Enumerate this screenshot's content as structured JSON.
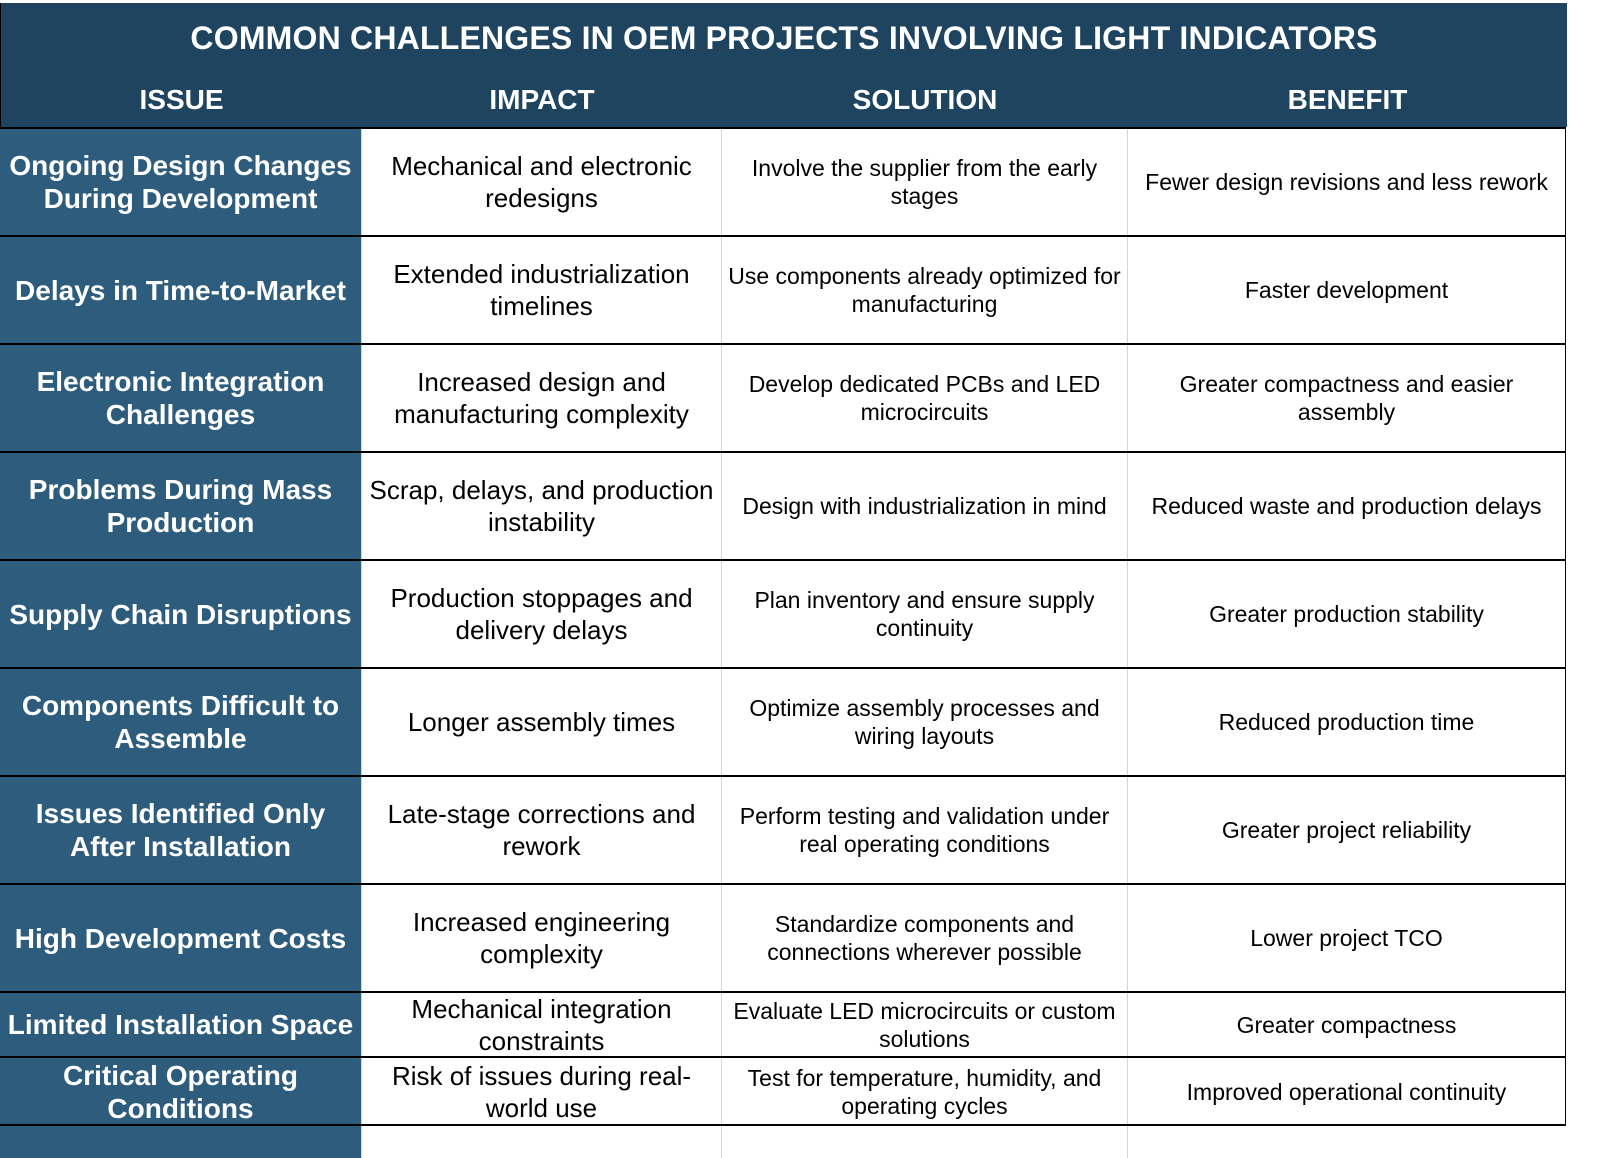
{
  "title": "COMMON CHALLENGES IN OEM PROJECTS INVOLVING LIGHT INDICATORS",
  "columns": [
    "ISSUE",
    "IMPACT",
    "SOLUTION",
    "BENEFIT"
  ],
  "rows": [
    {
      "issue": "Ongoing Design Changes During Development",
      "impact": "Mechanical and electronic redesigns",
      "solution": "Involve the supplier from the early stages",
      "benefit": "Fewer design revisions and less rework"
    },
    {
      "issue": "Delays in Time-to-Market",
      "impact": "Extended industrialization timelines",
      "solution": "Use components already optimized for manufacturing",
      "benefit": "Faster development"
    },
    {
      "issue": "Electronic Integration Challenges",
      "impact": "Increased design and manufacturing complexity",
      "solution": "Develop dedicated PCBs and LED microcircuits",
      "benefit": "Greater compactness and easier assembly"
    },
    {
      "issue": "Problems During Mass Production",
      "impact": "Scrap, delays, and production instability",
      "solution": "Design with industrialization in mind",
      "benefit": "Reduced waste and production delays"
    },
    {
      "issue": "Supply Chain Disruptions",
      "impact": "Production stoppages and delivery delays",
      "solution": "Plan inventory and ensure supply continuity",
      "benefit": "Greater production stability"
    },
    {
      "issue": "Components Difficult to Assemble",
      "impact": "Longer assembly times",
      "solution": "Optimize assembly processes and wiring layouts",
      "benefit": "Reduced production time"
    },
    {
      "issue": "Issues Identified Only After Installation",
      "impact": "Late-stage corrections and rework",
      "solution": "Perform testing and validation under real operating conditions",
      "benefit": "Greater project reliability"
    },
    {
      "issue": "High Development Costs",
      "impact": "Increased engineering complexity",
      "solution": "Standardize components and connections wherever possible",
      "benefit": "Lower project TCO"
    },
    {
      "issue": "Limited Installation Space",
      "impact": "Mechanical integration constraints",
      "solution": "Evaluate LED microcircuits or custom solutions",
      "benefit": "Greater compactness"
    },
    {
      "issue": "Critical Operating Conditions",
      "impact": "Risk of issues during real-world use",
      "solution": "Test for temperature, humidity, and operating cycles",
      "benefit": "Improved operational continuity"
    }
  ]
}
